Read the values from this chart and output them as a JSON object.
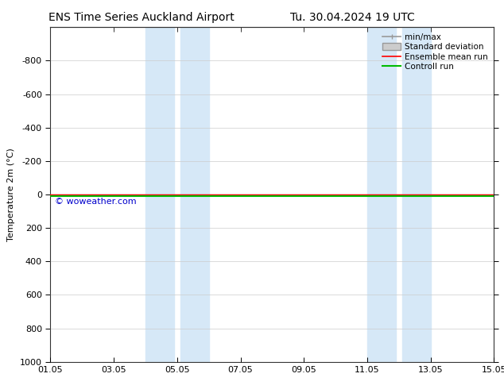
{
  "title_left": "ENS Time Series Auckland Airport",
  "title_right": "Tu. 30.04.2024 19 UTC",
  "ylabel": "Temperature 2m (°C)",
  "xlabel": "",
  "ylim_top": -1000,
  "ylim_bottom": 1000,
  "yticks": [
    -800,
    -600,
    -400,
    -200,
    0,
    200,
    400,
    600,
    800,
    1000
  ],
  "xtick_labels": [
    "01.05",
    "03.05",
    "05.05",
    "07.05",
    "09.05",
    "11.05",
    "13.05",
    "15.05"
  ],
  "xtick_positions": [
    0,
    2,
    4,
    6,
    8,
    10,
    12,
    14
  ],
  "x_start": 0,
  "x_end": 14,
  "shaded_bands": [
    [
      3.0,
      3.9
    ],
    [
      4.1,
      5.0
    ],
    [
      10.0,
      10.9
    ],
    [
      11.1,
      12.0
    ]
  ],
  "shade_color": "#d6e8f7",
  "line_y": 0,
  "line_color_gray": "#999999",
  "line_color_red": "#ff0000",
  "line_color_green": "#00bb00",
  "watermark_text": "© woweather.com",
  "watermark_color": "#0000cc",
  "legend_items": [
    {
      "label": "min/max",
      "color": "#999999",
      "lw": 1.2
    },
    {
      "label": "Standard deviation",
      "facecolor": "#cccccc",
      "edgecolor": "#999999"
    },
    {
      "label": "Ensemble mean run",
      "color": "#ff0000",
      "lw": 1.2
    },
    {
      "label": "Controll run",
      "color": "#00bb00",
      "lw": 1.5
    }
  ],
  "bg_color": "#ffffff",
  "grid_color": "#cccccc",
  "title_fontsize": 10,
  "axis_label_fontsize": 8,
  "tick_fontsize": 8,
  "legend_fontsize": 7.5
}
